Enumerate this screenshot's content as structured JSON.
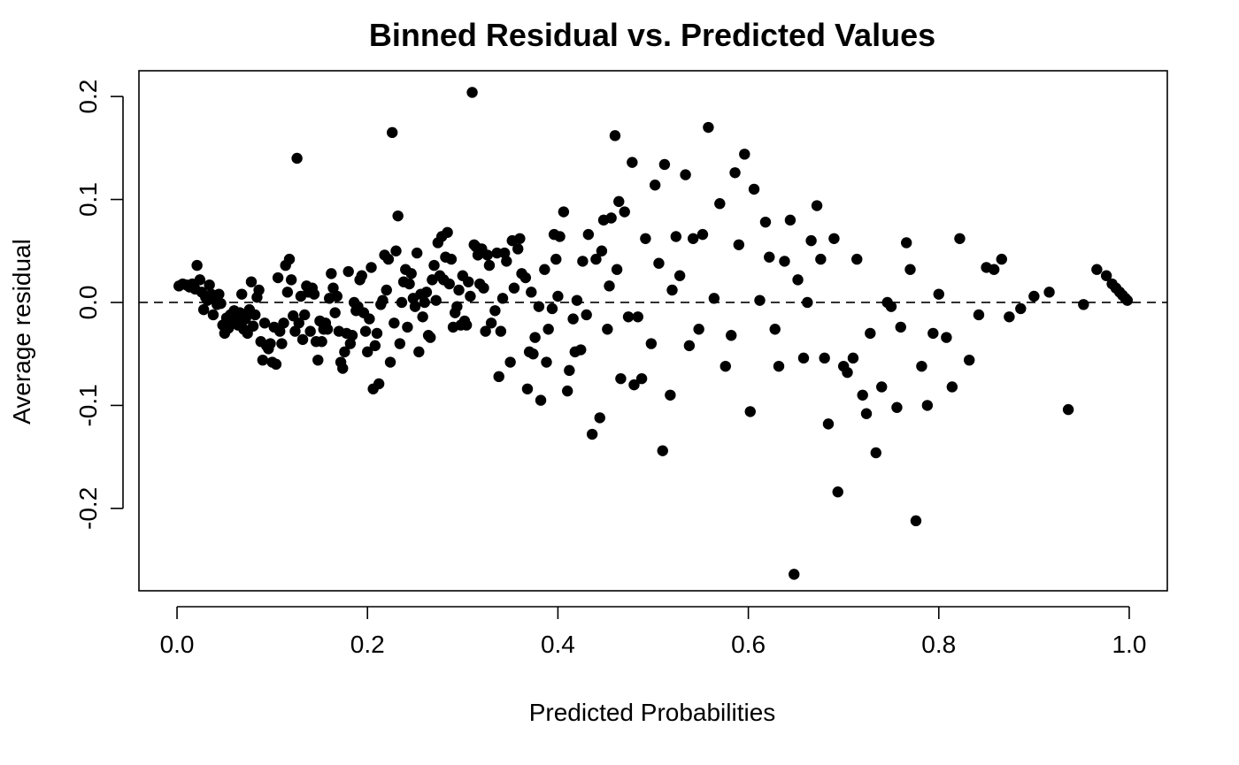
{
  "chart_data": {
    "type": "scatter",
    "title": "Binned Residual vs. Predicted Values",
    "xlabel": "Predicted Probabilities",
    "ylabel": "Average residual",
    "xlim": [
      -0.04,
      1.04
    ],
    "ylim": [
      -0.28,
      0.225
    ],
    "xticks": [
      0.0,
      0.2,
      0.4,
      0.6,
      0.8,
      1.0
    ],
    "xtick_labels": [
      "0.0",
      "0.2",
      "0.4",
      "0.6",
      "0.8",
      "1.0"
    ],
    "yticks": [
      -0.2,
      -0.1,
      0.0,
      0.1,
      0.2
    ],
    "ytick_labels": [
      "-0.2",
      "-0.1",
      "0.0",
      "0.1",
      "0.2"
    ],
    "reference_line": {
      "y": 0.0,
      "style": "dashed"
    },
    "grid": false,
    "legend": "none",
    "marker_color": "#000000",
    "series": [
      {
        "points": [
          [
            0.002,
            0.016
          ],
          [
            0.006,
            0.018
          ],
          [
            0.01,
            0.017
          ],
          [
            0.013,
            0.015
          ],
          [
            0.016,
            0.018
          ],
          [
            0.019,
            0.013
          ],
          [
            0.021,
            0.036
          ],
          [
            0.024,
            0.022
          ],
          [
            0.026,
            0.01
          ],
          [
            0.028,
            -0.007
          ],
          [
            0.03,
            0.005
          ],
          [
            0.032,
            0.002
          ],
          [
            0.034,
            0.017
          ],
          [
            0.036,
            0.008
          ],
          [
            0.038,
            -0.012
          ],
          [
            0.04,
            0.004
          ],
          [
            0.042,
            -0.002
          ],
          [
            0.044,
            0.008
          ],
          [
            0.046,
            -0.001
          ],
          [
            0.048,
            -0.022
          ],
          [
            0.05,
            -0.03
          ],
          [
            0.052,
            -0.015
          ],
          [
            0.054,
            -0.025
          ],
          [
            0.056,
            -0.012
          ],
          [
            0.058,
            -0.02
          ],
          [
            0.06,
            -0.008
          ],
          [
            0.062,
            -0.015
          ],
          [
            0.064,
            -0.022
          ],
          [
            0.066,
            -0.01
          ],
          [
            0.068,
            0.008
          ],
          [
            0.07,
            -0.026
          ],
          [
            0.072,
            -0.016
          ],
          [
            0.074,
            -0.03
          ],
          [
            0.076,
            -0.007
          ],
          [
            0.078,
            0.02
          ],
          [
            0.08,
            -0.023
          ],
          [
            0.082,
            -0.012
          ],
          [
            0.084,
            0.005
          ],
          [
            0.086,
            0.012
          ],
          [
            0.088,
            -0.038
          ],
          [
            0.09,
            -0.056
          ],
          [
            0.092,
            -0.02
          ],
          [
            0.094,
            -0.042
          ],
          [
            0.096,
            -0.045
          ],
          [
            0.098,
            -0.04
          ],
          [
            0.1,
            -0.058
          ],
          [
            0.102,
            -0.024
          ],
          [
            0.104,
            -0.06
          ],
          [
            0.106,
            0.024
          ],
          [
            0.108,
            -0.028
          ],
          [
            0.11,
            -0.04
          ],
          [
            0.112,
            -0.02
          ],
          [
            0.114,
            0.036
          ],
          [
            0.116,
            0.01
          ],
          [
            0.118,
            0.042
          ],
          [
            0.12,
            0.022
          ],
          [
            0.122,
            -0.013
          ],
          [
            0.124,
            -0.028
          ],
          [
            0.126,
            0.14
          ],
          [
            0.128,
            -0.02
          ],
          [
            0.13,
            0.006
          ],
          [
            0.132,
            -0.036
          ],
          [
            0.134,
            -0.012
          ],
          [
            0.136,
            0.016
          ],
          [
            0.138,
            0.01
          ],
          [
            0.14,
            -0.028
          ],
          [
            0.142,
            0.014
          ],
          [
            0.144,
            0.008
          ],
          [
            0.146,
            -0.038
          ],
          [
            0.148,
            -0.056
          ],
          [
            0.15,
            -0.018
          ],
          [
            0.152,
            -0.038
          ],
          [
            0.154,
            -0.026
          ],
          [
            0.156,
            -0.02
          ],
          [
            0.158,
            -0.026
          ],
          [
            0.16,
            0.004
          ],
          [
            0.162,
            0.028
          ],
          [
            0.164,
            0.014
          ],
          [
            0.166,
            -0.01
          ],
          [
            0.168,
            0.006
          ],
          [
            0.17,
            -0.028
          ],
          [
            0.172,
            -0.058
          ],
          [
            0.174,
            -0.064
          ],
          [
            0.176,
            -0.048
          ],
          [
            0.178,
            -0.03
          ],
          [
            0.18,
            0.03
          ],
          [
            0.182,
            -0.04
          ],
          [
            0.184,
            -0.032
          ],
          [
            0.186,
            0.0
          ],
          [
            0.188,
            -0.008
          ],
          [
            0.19,
            -0.004
          ],
          [
            0.192,
            0.022
          ],
          [
            0.194,
            0.026
          ],
          [
            0.196,
            -0.01
          ],
          [
            0.198,
            -0.028
          ],
          [
            0.2,
            -0.048
          ],
          [
            0.202,
            -0.016
          ],
          [
            0.204,
            0.034
          ],
          [
            0.206,
            -0.084
          ],
          [
            0.208,
            -0.042
          ],
          [
            0.21,
            -0.03
          ],
          [
            0.212,
            -0.079
          ],
          [
            0.214,
            -0.002
          ],
          [
            0.216,
            0.002
          ],
          [
            0.218,
            0.046
          ],
          [
            0.22,
            0.012
          ],
          [
            0.222,
            0.042
          ],
          [
            0.224,
            -0.058
          ],
          [
            0.226,
            0.165
          ],
          [
            0.228,
            -0.02
          ],
          [
            0.23,
            0.05
          ],
          [
            0.232,
            0.084
          ],
          [
            0.234,
            -0.04
          ],
          [
            0.236,
            0.0
          ],
          [
            0.238,
            0.02
          ],
          [
            0.24,
            0.032
          ],
          [
            0.242,
            -0.024
          ],
          [
            0.244,
            0.018
          ],
          [
            0.246,
            0.028
          ],
          [
            0.248,
            0.004
          ],
          [
            0.25,
            -0.004
          ],
          [
            0.252,
            0.048
          ],
          [
            0.254,
            -0.048
          ],
          [
            0.256,
            0.008
          ],
          [
            0.258,
            -0.014
          ],
          [
            0.26,
            0.0
          ],
          [
            0.262,
            0.01
          ],
          [
            0.264,
            -0.032
          ],
          [
            0.266,
            -0.034
          ],
          [
            0.268,
            0.022
          ],
          [
            0.27,
            0.036
          ],
          [
            0.272,
            0.002
          ],
          [
            0.274,
            0.058
          ],
          [
            0.276,
            0.026
          ],
          [
            0.278,
            0.064
          ],
          [
            0.28,
            0.022
          ],
          [
            0.282,
            0.044
          ],
          [
            0.284,
            0.068
          ],
          [
            0.286,
            0.018
          ],
          [
            0.288,
            0.042
          ],
          [
            0.29,
            -0.024
          ],
          [
            0.292,
            -0.01
          ],
          [
            0.294,
            -0.004
          ],
          [
            0.296,
            0.012
          ],
          [
            0.298,
            -0.022
          ],
          [
            0.3,
            0.026
          ],
          [
            0.302,
            -0.018
          ],
          [
            0.304,
            -0.022
          ],
          [
            0.306,
            0.02
          ],
          [
            0.308,
            0.006
          ],
          [
            0.31,
            0.204
          ],
          [
            0.312,
            0.056
          ],
          [
            0.314,
            0.054
          ],
          [
            0.316,
            0.046
          ],
          [
            0.318,
            0.018
          ],
          [
            0.32,
            0.052
          ],
          [
            0.322,
            0.014
          ],
          [
            0.324,
            -0.028
          ],
          [
            0.326,
            0.046
          ],
          [
            0.328,
            0.036
          ],
          [
            0.33,
            -0.02
          ],
          [
            0.334,
            -0.008
          ],
          [
            0.336,
            0.048
          ],
          [
            0.338,
            -0.072
          ],
          [
            0.34,
            -0.028
          ],
          [
            0.342,
            0.004
          ],
          [
            0.344,
            0.048
          ],
          [
            0.346,
            0.04
          ],
          [
            0.35,
            -0.058
          ],
          [
            0.352,
            0.06
          ],
          [
            0.354,
            0.014
          ],
          [
            0.358,
            0.052
          ],
          [
            0.36,
            0.062
          ],
          [
            0.362,
            0.028
          ],
          [
            0.366,
            0.024
          ],
          [
            0.368,
            -0.084
          ],
          [
            0.37,
            -0.048
          ],
          [
            0.372,
            0.01
          ],
          [
            0.374,
            -0.05
          ],
          [
            0.376,
            -0.034
          ],
          [
            0.38,
            -0.004
          ],
          [
            0.382,
            -0.095
          ],
          [
            0.386,
            0.032
          ],
          [
            0.388,
            -0.058
          ],
          [
            0.39,
            -0.026
          ],
          [
            0.394,
            -0.006
          ],
          [
            0.396,
            0.066
          ],
          [
            0.398,
            0.042
          ],
          [
            0.4,
            0.006
          ],
          [
            0.402,
            0.064
          ],
          [
            0.406,
            0.088
          ],
          [
            0.41,
            -0.086
          ],
          [
            0.412,
            -0.066
          ],
          [
            0.416,
            -0.016
          ],
          [
            0.418,
            -0.048
          ],
          [
            0.42,
            0.002
          ],
          [
            0.424,
            -0.046
          ],
          [
            0.426,
            0.04
          ],
          [
            0.43,
            -0.012
          ],
          [
            0.432,
            0.066
          ],
          [
            0.436,
            -0.128
          ],
          [
            0.44,
            0.042
          ],
          [
            0.444,
            -0.112
          ],
          [
            0.446,
            0.05
          ],
          [
            0.448,
            0.08
          ],
          [
            0.452,
            -0.026
          ],
          [
            0.454,
            0.016
          ],
          [
            0.456,
            0.082
          ],
          [
            0.46,
            0.162
          ],
          [
            0.462,
            0.032
          ],
          [
            0.464,
            0.098
          ],
          [
            0.466,
            -0.074
          ],
          [
            0.47,
            0.088
          ],
          [
            0.474,
            -0.014
          ],
          [
            0.478,
            0.136
          ],
          [
            0.48,
            -0.08
          ],
          [
            0.484,
            -0.014
          ],
          [
            0.488,
            -0.074
          ],
          [
            0.492,
            0.062
          ],
          [
            0.498,
            -0.04
          ],
          [
            0.502,
            0.114
          ],
          [
            0.506,
            0.038
          ],
          [
            0.51,
            -0.144
          ],
          [
            0.512,
            0.134
          ],
          [
            0.518,
            -0.09
          ],
          [
            0.52,
            0.012
          ],
          [
            0.524,
            0.064
          ],
          [
            0.528,
            0.026
          ],
          [
            0.534,
            0.124
          ],
          [
            0.538,
            -0.042
          ],
          [
            0.542,
            0.062
          ],
          [
            0.548,
            -0.026
          ],
          [
            0.552,
            0.066
          ],
          [
            0.558,
            0.17
          ],
          [
            0.564,
            0.004
          ],
          [
            0.57,
            0.096
          ],
          [
            0.576,
            -0.062
          ],
          [
            0.582,
            -0.032
          ],
          [
            0.586,
            0.126
          ],
          [
            0.59,
            0.056
          ],
          [
            0.596,
            0.144
          ],
          [
            0.602,
            -0.106
          ],
          [
            0.606,
            0.11
          ],
          [
            0.612,
            0.002
          ],
          [
            0.618,
            0.078
          ],
          [
            0.622,
            0.044
          ],
          [
            0.628,
            -0.026
          ],
          [
            0.632,
            -0.062
          ],
          [
            0.638,
            0.04
          ],
          [
            0.644,
            0.08
          ],
          [
            0.648,
            -0.264
          ],
          [
            0.652,
            0.022
          ],
          [
            0.658,
            -0.054
          ],
          [
            0.662,
            0.0
          ],
          [
            0.666,
            0.06
          ],
          [
            0.672,
            0.094
          ],
          [
            0.676,
            0.042
          ],
          [
            0.68,
            -0.054
          ],
          [
            0.684,
            -0.118
          ],
          [
            0.69,
            0.062
          ],
          [
            0.694,
            -0.184
          ],
          [
            0.7,
            -0.062
          ],
          [
            0.704,
            -0.068
          ],
          [
            0.71,
            -0.054
          ],
          [
            0.714,
            0.042
          ],
          [
            0.72,
            -0.09
          ],
          [
            0.724,
            -0.108
          ],
          [
            0.728,
            -0.03
          ],
          [
            0.734,
            -0.146
          ],
          [
            0.74,
            -0.082
          ],
          [
            0.746,
            0.0
          ],
          [
            0.75,
            -0.004
          ],
          [
            0.756,
            -0.102
          ],
          [
            0.76,
            -0.024
          ],
          [
            0.766,
            0.058
          ],
          [
            0.77,
            0.032
          ],
          [
            0.776,
            -0.212
          ],
          [
            0.782,
            -0.062
          ],
          [
            0.788,
            -0.1
          ],
          [
            0.794,
            -0.03
          ],
          [
            0.8,
            0.008
          ],
          [
            0.808,
            -0.034
          ],
          [
            0.814,
            -0.082
          ],
          [
            0.822,
            0.062
          ],
          [
            0.832,
            -0.056
          ],
          [
            0.842,
            -0.012
          ],
          [
            0.85,
            0.034
          ],
          [
            0.858,
            0.032
          ],
          [
            0.866,
            0.042
          ],
          [
            0.874,
            -0.014
          ],
          [
            0.886,
            -0.006
          ],
          [
            0.9,
            0.006
          ],
          [
            0.916,
            0.01
          ],
          [
            0.936,
            -0.104
          ],
          [
            0.952,
            -0.002
          ],
          [
            0.966,
            0.032
          ],
          [
            0.976,
            0.026
          ],
          [
            0.982,
            0.018
          ],
          [
            0.986,
            0.014
          ],
          [
            0.99,
            0.01
          ],
          [
            0.993,
            0.007
          ],
          [
            0.996,
            0.004
          ],
          [
            0.998,
            0.002
          ]
        ]
      }
    ]
  }
}
